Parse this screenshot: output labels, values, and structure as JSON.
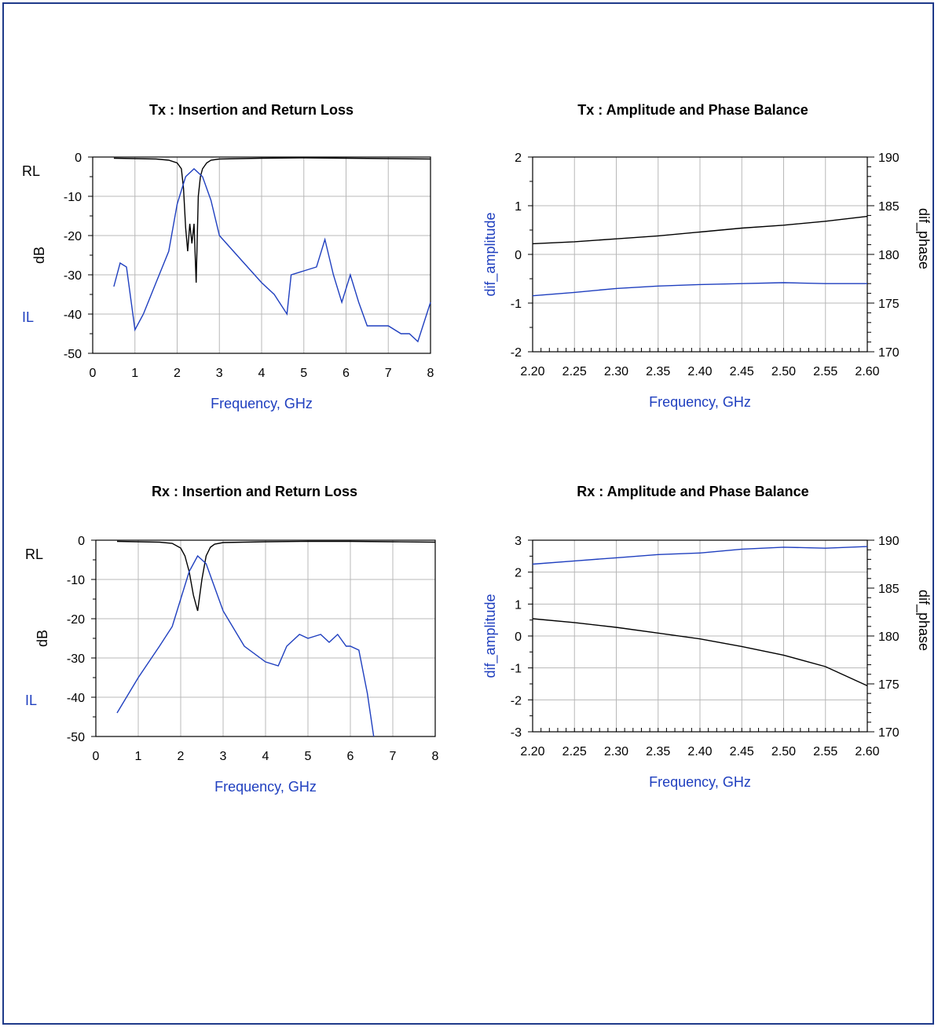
{
  "colors": {
    "blue": "#1f3fbf",
    "black": "#000000",
    "grid": "#b8b8b8",
    "frame": "#1f3a8a"
  },
  "chart_data": [
    {
      "id": "tx-loss",
      "type": "line",
      "title": "Tx : Insertion and Return Loss",
      "xlabel": "Frequency, GHz",
      "ylabel": "dB",
      "xlim": [
        0,
        8
      ],
      "ylim": [
        -50,
        0
      ],
      "xticks": [
        0,
        1,
        2,
        3,
        4,
        5,
        6,
        7,
        8
      ],
      "yticks": [
        0,
        -10,
        -20,
        -30,
        -40,
        -50
      ],
      "grid": true,
      "series": [
        {
          "name": "RL",
          "color": "#000000",
          "x": [
            0.5,
            1,
            1.5,
            1.8,
            2,
            2.1,
            2.15,
            2.2,
            2.25,
            2.3,
            2.35,
            2.4,
            2.45,
            2.5,
            2.55,
            2.6,
            2.7,
            2.8,
            3,
            3.5,
            4,
            5,
            6,
            7,
            8
          ],
          "y": [
            -0.3,
            -0.4,
            -0.5,
            -0.8,
            -1.5,
            -3,
            -8,
            -18,
            -24,
            -17,
            -22,
            -17,
            -32,
            -10,
            -5,
            -3,
            -1.5,
            -0.8,
            -0.5,
            -0.4,
            -0.3,
            -0.2,
            -0.3,
            -0.4,
            -0.5
          ]
        },
        {
          "name": "IL",
          "color": "#1f3fbf",
          "x": [
            0.5,
            0.65,
            0.8,
            1,
            1.2,
            1.5,
            1.8,
            2,
            2.2,
            2.4,
            2.6,
            2.8,
            3,
            3.5,
            4,
            4.3,
            4.6,
            4.7,
            5,
            5.3,
            5.5,
            5.7,
            5.9,
            6.1,
            6.3,
            6.5,
            7,
            7.3,
            7.5,
            7.7,
            8
          ],
          "y": [
            -33,
            -27,
            -28,
            -44,
            -40,
            -32,
            -24,
            -12,
            -5,
            -3,
            -5,
            -11,
            -20,
            -26,
            -32,
            -35,
            -40,
            -30,
            -29,
            -28,
            -21,
            -30,
            -37,
            -30,
            -37,
            -43,
            -43,
            -45,
            -45,
            -47,
            -37
          ]
        }
      ]
    },
    {
      "id": "tx-balance",
      "type": "line",
      "title": "Tx : Amplitude and Phase Balance",
      "xlabel": "Frequency, GHz",
      "ylabel": "dif_amplitude",
      "y2label": "dif_phase",
      "xlim": [
        2.2,
        2.6
      ],
      "ylim": [
        -2,
        2
      ],
      "y2lim": [
        170,
        190
      ],
      "xticks": [
        "2.20",
        "2.25",
        "2.30",
        "2.35",
        "2.40",
        "2.45",
        "2.50",
        "2.55",
        "2.60"
      ],
      "yticks": [
        2,
        1,
        0,
        -1,
        -2
      ],
      "y2ticks": [
        190,
        185,
        180,
        175,
        170
      ],
      "grid": true,
      "series": [
        {
          "name": "dif_amplitude",
          "color": "#1f3fbf",
          "axis": "left",
          "x": [
            2.2,
            2.25,
            2.3,
            2.35,
            2.4,
            2.45,
            2.5,
            2.55,
            2.6
          ],
          "y": [
            -0.85,
            -0.78,
            -0.7,
            -0.65,
            -0.62,
            -0.6,
            -0.58,
            -0.6,
            -0.6
          ]
        },
        {
          "name": "dif_phase",
          "color": "#000000",
          "axis": "right",
          "x": [
            2.2,
            2.25,
            2.3,
            2.35,
            2.4,
            2.45,
            2.5,
            2.55,
            2.6
          ],
          "y": [
            181.1,
            181.3,
            181.6,
            181.9,
            182.3,
            182.7,
            183,
            183.4,
            183.9
          ]
        }
      ]
    },
    {
      "id": "rx-loss",
      "type": "line",
      "title": "Rx : Insertion and Return Loss",
      "xlabel": "Frequency, GHz",
      "ylabel": "dB",
      "xlim": [
        0,
        8
      ],
      "ylim": [
        -50,
        0
      ],
      "xticks": [
        0,
        1,
        2,
        3,
        4,
        5,
        6,
        7,
        8
      ],
      "yticks": [
        0,
        -10,
        -20,
        -30,
        -40,
        -50
      ],
      "grid": true,
      "series": [
        {
          "name": "RL",
          "color": "#000000",
          "x": [
            0.5,
            1,
            1.5,
            1.8,
            2,
            2.1,
            2.2,
            2.3,
            2.4,
            2.5,
            2.6,
            2.7,
            2.8,
            3,
            4,
            5,
            6,
            7,
            8
          ],
          "y": [
            -0.3,
            -0.4,
            -0.5,
            -0.8,
            -2,
            -4,
            -8,
            -14,
            -18,
            -10,
            -4,
            -1.8,
            -1,
            -0.6,
            -0.4,
            -0.3,
            -0.3,
            -0.4,
            -0.5
          ]
        },
        {
          "name": "IL",
          "color": "#1f3fbf",
          "x": [
            0.5,
            1,
            1.5,
            1.8,
            2,
            2.2,
            2.4,
            2.6,
            2.8,
            3,
            3.5,
            4,
            4.3,
            4.5,
            4.8,
            5,
            5.3,
            5.5,
            5.6,
            5.7,
            5.9,
            6,
            6.2,
            6.4,
            6.55
          ],
          "y": [
            -44,
            -35,
            -27,
            -22,
            -15,
            -8,
            -4,
            -6,
            -12,
            -18,
            -27,
            -31,
            -32,
            -27,
            -24,
            -25,
            -24,
            -26,
            -25,
            -24,
            -27,
            -27,
            -28,
            -39,
            -50
          ]
        }
      ]
    },
    {
      "id": "rx-balance",
      "type": "line",
      "title": "Rx : Amplitude and Phase Balance",
      "xlabel": "Frequency, GHz",
      "ylabel": "dif_amplitude",
      "y2label": "dif_phase",
      "xlim": [
        2.2,
        2.6
      ],
      "ylim": [
        -3,
        3
      ],
      "y2lim": [
        170,
        190
      ],
      "xticks": [
        "2.20",
        "2.25",
        "2.30",
        "2.35",
        "2.40",
        "2.45",
        "2.50",
        "2.55",
        "2.60"
      ],
      "yticks": [
        3,
        2,
        1,
        0,
        -1,
        -2,
        -3
      ],
      "y2ticks": [
        190,
        185,
        180,
        175,
        170
      ],
      "grid": true,
      "series": [
        {
          "name": "dif_amplitude",
          "color": "#1f3fbf",
          "axis": "left",
          "x": [
            2.2,
            2.25,
            2.3,
            2.35,
            2.4,
            2.45,
            2.5,
            2.55,
            2.6
          ],
          "y": [
            2.25,
            2.35,
            2.45,
            2.55,
            2.6,
            2.72,
            2.78,
            2.75,
            2.8
          ]
        },
        {
          "name": "dif_phase",
          "color": "#000000",
          "axis": "right",
          "x": [
            2.2,
            2.25,
            2.3,
            2.35,
            2.4,
            2.45,
            2.5,
            2.55,
            2.6
          ],
          "y": [
            181.8,
            181.4,
            180.9,
            180.3,
            179.7,
            178.9,
            178.0,
            176.8,
            174.8
          ]
        }
      ]
    }
  ]
}
